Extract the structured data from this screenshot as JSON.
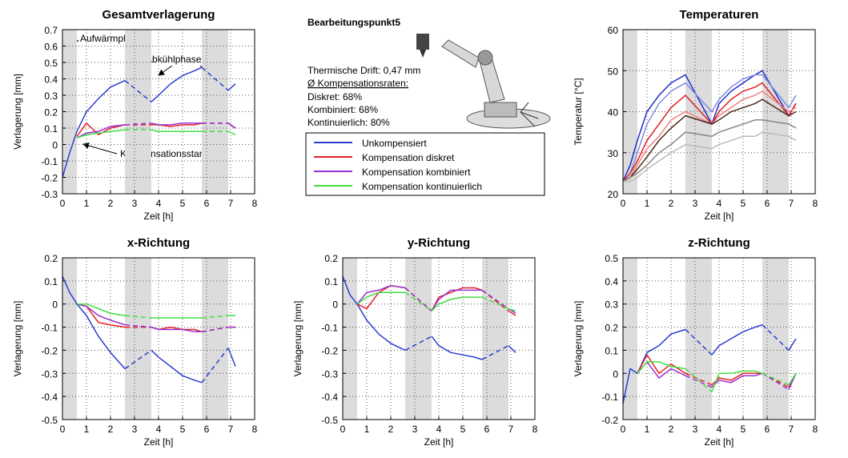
{
  "info": {
    "title": "Bearbeitungspunkt5",
    "lines": [
      "Thermische Drift: 0,47 mm",
      "Ø Kompensationsraten:",
      "Diskret: 68%",
      "Kombiniert: 68%",
      "Kontinuierlich: 80%"
    ]
  },
  "chart_data": [
    {
      "type": "line",
      "title": "Gesamtverlagerung",
      "xlabel": "Zeit [h]",
      "ylabel": "Verlagerung [mm]",
      "annotations": [
        "Aufwärmphase",
        "Abkühlphasen",
        "Kompensationsstart"
      ],
      "x": [
        0,
        0.3,
        0.6,
        1,
        1.5,
        2,
        2.6,
        3.7,
        4,
        4.5,
        5,
        5.5,
        5.8,
        6.9,
        7.2
      ],
      "series": [
        {
          "name": "Unkompensiert",
          "color": "#2b3fd0",
          "values": [
            -0.2,
            -0.05,
            0.08,
            0.2,
            0.28,
            0.35,
            0.39,
            0.26,
            0.3,
            0.37,
            0.42,
            0.45,
            0.47,
            0.33,
            0.37
          ]
        },
        {
          "name": "Kompensation diskret",
          "color": "#e8202a",
          "values": [
            null,
            null,
            0.05,
            0.13,
            0.06,
            0.1,
            0.12,
            0.12,
            0.12,
            0.11,
            0.12,
            0.12,
            0.13,
            0.13,
            0.1
          ]
        },
        {
          "name": "Kompensation kombiniert",
          "color": "#9a30d0",
          "values": [
            null,
            null,
            0.04,
            0.07,
            0.08,
            0.11,
            0.12,
            0.13,
            0.12,
            0.12,
            0.13,
            0.13,
            0.13,
            0.13,
            0.1
          ]
        },
        {
          "name": "Kompensation kontinuierlich",
          "color": "#40e040",
          "values": [
            null,
            null,
            0.04,
            0.06,
            0.07,
            0.08,
            0.09,
            0.09,
            0.08,
            0.08,
            0.08,
            0.08,
            0.08,
            0.08,
            0.06
          ]
        }
      ],
      "xlim": [
        0,
        8
      ],
      "xticks": [
        0,
        1,
        2,
        3,
        4,
        5,
        6,
        7,
        8
      ],
      "ylim": [
        -0.3,
        0.7
      ],
      "yticks": [
        -0.3,
        -0.2,
        -0.1,
        0,
        0.1,
        0.2,
        0.3,
        0.4,
        0.5,
        0.6,
        0.7
      ],
      "grid": true,
      "bands": [
        [
          0,
          0.6
        ],
        [
          2.6,
          3.7
        ],
        [
          5.8,
          6.9
        ]
      ],
      "dashed_in_bands": [
        1,
        2
      ]
    },
    {
      "type": "line",
      "title": "Temperaturen",
      "xlabel": "Zeit [h]",
      "ylabel": "Temperatur [°C]",
      "x": [
        0,
        0.3,
        0.6,
        1,
        1.5,
        2,
        2.6,
        3.7,
        4,
        4.5,
        5,
        5.5,
        5.8,
        6.9,
        7.2
      ],
      "series": [
        {
          "color": "#1f2fc8",
          "values": [
            23,
            27,
            33,
            40,
            44,
            47,
            49,
            37,
            42,
            45,
            47,
            49,
            50,
            39,
            42
          ]
        },
        {
          "color": "#7f8ce0",
          "values": [
            23,
            25,
            30,
            37,
            42,
            45,
            47,
            40,
            43,
            46,
            48,
            49,
            49,
            41,
            44
          ]
        },
        {
          "color": "#e02020",
          "values": [
            23,
            25,
            28,
            33,
            37,
            41,
            44,
            37,
            40,
            43,
            45,
            46,
            47,
            39,
            42
          ]
        },
        {
          "color": "#f08080",
          "values": [
            23,
            24,
            27,
            31,
            34,
            38,
            40,
            37,
            39,
            41,
            43,
            44,
            45,
            40,
            41
          ]
        },
        {
          "color": "#4a2a1a",
          "values": [
            23,
            24,
            26,
            29,
            33,
            36,
            39,
            37,
            38,
            40,
            41,
            42,
            43,
            39,
            40
          ]
        },
        {
          "color": "#888888",
          "values": [
            23,
            24,
            25,
            27,
            30,
            32,
            35,
            34,
            35,
            36,
            37,
            38,
            38,
            37,
            36
          ]
        },
        {
          "color": "#bbbbbb",
          "values": [
            23,
            23,
            24,
            26,
            28,
            30,
            32,
            31,
            32,
            33,
            34,
            34,
            35,
            34,
            33
          ]
        }
      ],
      "xlim": [
        0,
        8
      ],
      "xticks": [
        0,
        1,
        2,
        3,
        4,
        5,
        6,
        7,
        8
      ],
      "ylim": [
        20,
        60
      ],
      "yticks": [
        20,
        30,
        40,
        50,
        60
      ],
      "grid": true,
      "bands": [
        [
          0,
          0.6
        ],
        [
          2.6,
          3.7
        ],
        [
          5.8,
          6.9
        ]
      ],
      "dashed_in_bands": []
    },
    {
      "type": "line",
      "title": "x-Richtung",
      "xlabel": "Zeit [h]",
      "ylabel": "Verlagerung [mm]",
      "x": [
        0,
        0.3,
        0.6,
        1,
        1.5,
        2,
        2.6,
        3.7,
        4,
        4.5,
        5,
        5.5,
        5.8,
        6.9,
        7.2
      ],
      "series": [
        {
          "color": "#2b3fd0",
          "values": [
            0.12,
            0.05,
            0.0,
            -0.05,
            -0.14,
            -0.21,
            -0.28,
            -0.2,
            -0.23,
            -0.27,
            -0.31,
            -0.33,
            -0.34,
            -0.19,
            -0.27
          ]
        },
        {
          "color": "#e8202a",
          "values": [
            null,
            null,
            0.0,
            -0.01,
            -0.08,
            -0.09,
            -0.1,
            -0.1,
            -0.11,
            -0.1,
            -0.11,
            -0.11,
            -0.12,
            -0.1,
            -0.1
          ]
        },
        {
          "color": "#9a30d0",
          "values": [
            null,
            null,
            0.0,
            -0.01,
            -0.05,
            -0.07,
            -0.09,
            -0.1,
            -0.11,
            -0.11,
            -0.11,
            -0.12,
            -0.12,
            -0.1,
            -0.1
          ]
        },
        {
          "color": "#40e040",
          "values": [
            null,
            null,
            0.0,
            0.0,
            -0.02,
            -0.04,
            -0.05,
            -0.06,
            -0.06,
            -0.06,
            -0.06,
            -0.06,
            -0.06,
            -0.05,
            -0.05
          ]
        }
      ],
      "xlim": [
        0,
        8
      ],
      "xticks": [
        0,
        1,
        2,
        3,
        4,
        5,
        6,
        7,
        8
      ],
      "ylim": [
        -0.5,
        0.2
      ],
      "yticks": [
        -0.5,
        -0.4,
        -0.3,
        -0.2,
        -0.1,
        0,
        0.1,
        0.2
      ],
      "grid": true,
      "bands": [
        [
          0,
          0.6
        ],
        [
          2.6,
          3.7
        ],
        [
          5.8,
          6.9
        ]
      ],
      "dashed_in_bands": [
        1,
        2
      ]
    },
    {
      "type": "line",
      "title": "y-Richtung",
      "xlabel": "Zeit [h]",
      "ylabel": "Verlagerung [mm]",
      "x": [
        0,
        0.3,
        0.6,
        1,
        1.5,
        2,
        2.6,
        3.7,
        4,
        4.5,
        5,
        5.5,
        5.8,
        6.9,
        7.2
      ],
      "series": [
        {
          "color": "#2b3fd0",
          "values": [
            0.12,
            0.04,
            0.0,
            -0.07,
            -0.13,
            -0.17,
            -0.2,
            -0.14,
            -0.18,
            -0.21,
            -0.22,
            -0.23,
            -0.24,
            -0.18,
            -0.21
          ]
        },
        {
          "color": "#e8202a",
          "values": [
            null,
            null,
            0.0,
            -0.02,
            0.05,
            0.08,
            0.07,
            -0.03,
            0.03,
            0.05,
            0.07,
            0.07,
            0.06,
            -0.03,
            -0.05
          ]
        },
        {
          "color": "#9a30d0",
          "values": [
            null,
            null,
            0.0,
            0.05,
            0.06,
            0.08,
            0.07,
            -0.03,
            0.02,
            0.06,
            0.06,
            0.06,
            0.06,
            -0.02,
            -0.04
          ]
        },
        {
          "color": "#40e040",
          "values": [
            null,
            null,
            0.0,
            0.03,
            0.05,
            0.05,
            0.05,
            -0.03,
            0.0,
            0.02,
            0.03,
            0.03,
            0.03,
            -0.02,
            -0.03
          ]
        }
      ],
      "xlim": [
        0,
        8
      ],
      "xticks": [
        0,
        1,
        2,
        3,
        4,
        5,
        6,
        7,
        8
      ],
      "ylim": [
        -0.5,
        0.2
      ],
      "yticks": [
        -0.5,
        -0.4,
        -0.3,
        -0.2,
        -0.1,
        0,
        0.1,
        0.2
      ],
      "grid": true,
      "bands": [
        [
          0,
          0.6
        ],
        [
          2.6,
          3.7
        ],
        [
          5.8,
          6.9
        ]
      ],
      "dashed_in_bands": [
        1,
        2
      ]
    },
    {
      "type": "line",
      "title": "z-Richtung",
      "xlabel": "Zeit [h]",
      "ylabel": "Verlagerung [mm]",
      "x": [
        0,
        0.3,
        0.6,
        1,
        1.5,
        2,
        2.6,
        3.7,
        4,
        4.5,
        5,
        5.5,
        5.8,
        6.9,
        7.2
      ],
      "series": [
        {
          "color": "#2b3fd0",
          "values": [
            -0.13,
            0.02,
            0.0,
            0.09,
            0.12,
            0.17,
            0.19,
            0.08,
            0.12,
            0.15,
            0.18,
            0.2,
            0.21,
            0.1,
            0.15
          ]
        },
        {
          "color": "#e8202a",
          "values": [
            null,
            null,
            0.0,
            0.08,
            0.0,
            0.04,
            0.0,
            -0.05,
            -0.02,
            -0.03,
            0.0,
            0.0,
            0.0,
            -0.06,
            0.0
          ]
        },
        {
          "color": "#9a30d0",
          "values": [
            null,
            null,
            0.0,
            0.05,
            -0.02,
            0.02,
            -0.01,
            -0.06,
            -0.03,
            -0.04,
            -0.01,
            -0.01,
            0.0,
            -0.07,
            0.0
          ]
        },
        {
          "color": "#40e040",
          "values": [
            null,
            null,
            0.0,
            0.05,
            0.05,
            0.03,
            0.02,
            -0.08,
            0.0,
            0.0,
            0.01,
            0.01,
            0.0,
            -0.05,
            0.0
          ]
        }
      ],
      "xlim": [
        0,
        8
      ],
      "xticks": [
        0,
        1,
        2,
        3,
        4,
        5,
        6,
        7,
        8
      ],
      "ylim": [
        -0.2,
        0.5
      ],
      "yticks": [
        -0.2,
        -0.1,
        0,
        0.1,
        0.2,
        0.3,
        0.4,
        0.5
      ],
      "grid": true,
      "bands": [
        [
          0,
          0.6
        ],
        [
          2.6,
          3.7
        ],
        [
          5.8,
          6.9
        ]
      ],
      "dashed_in_bands": [
        1,
        2
      ]
    }
  ]
}
